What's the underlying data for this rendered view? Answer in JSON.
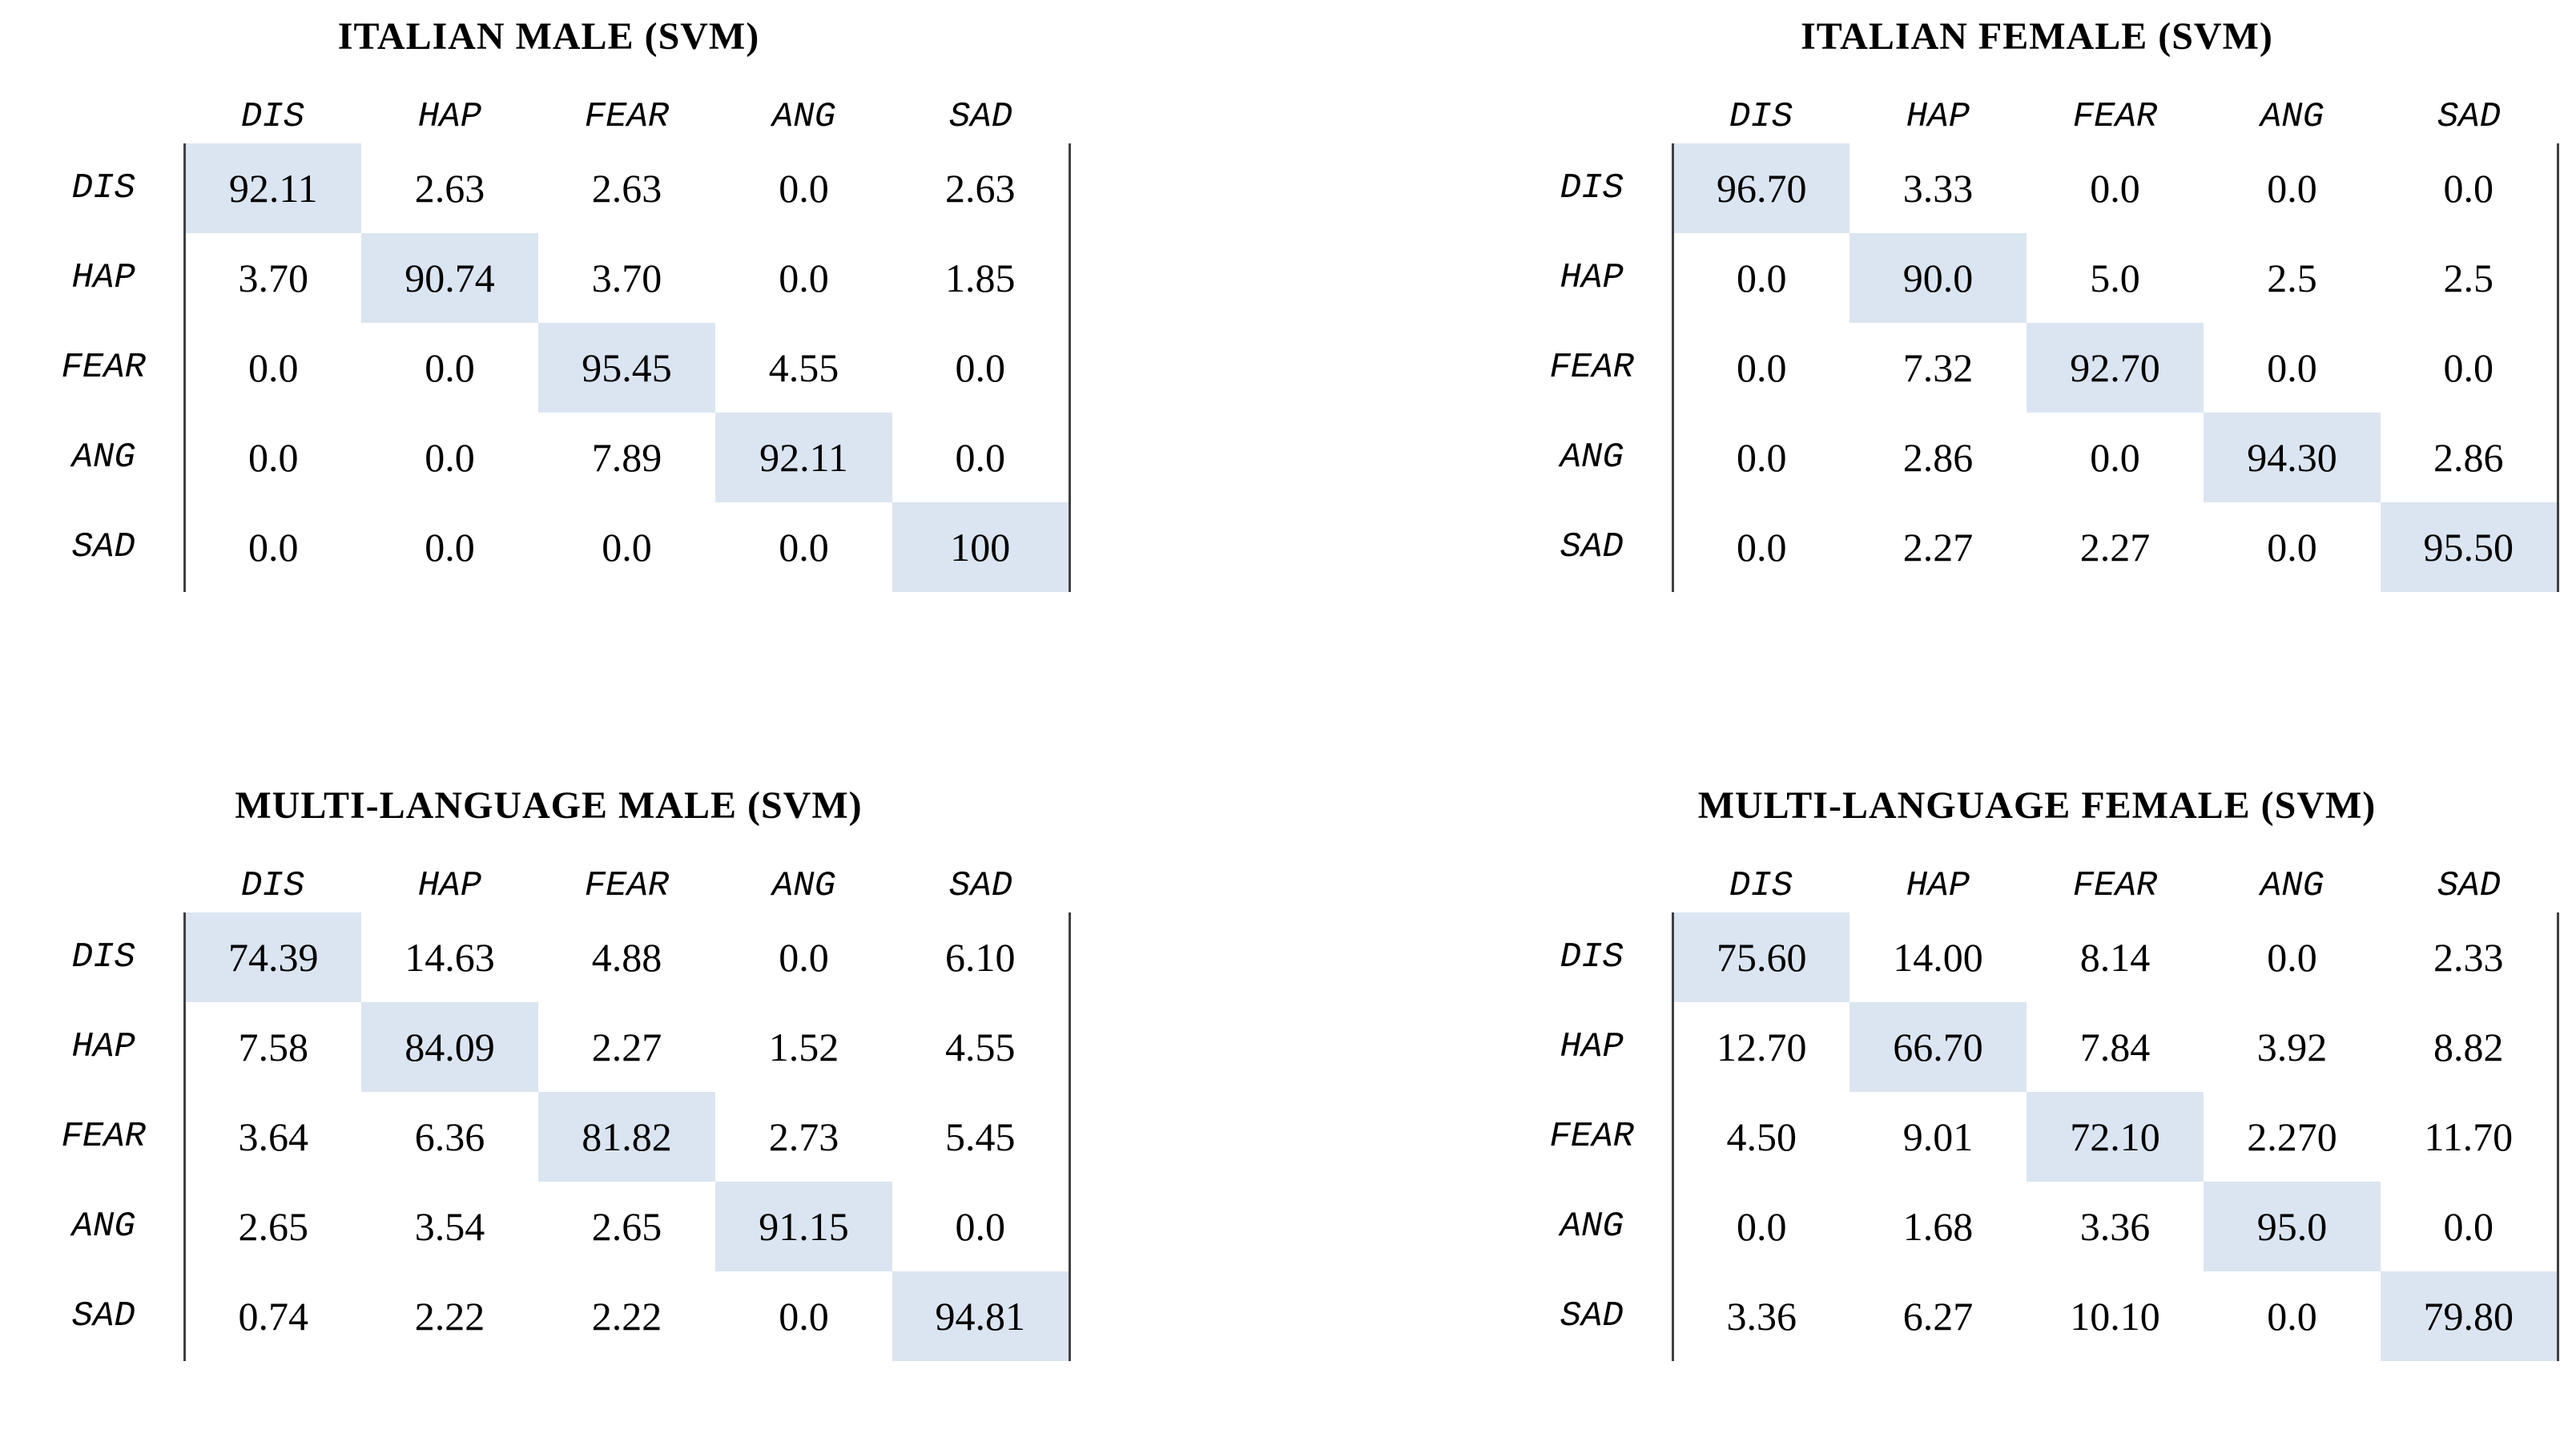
{
  "page": {
    "background": "#ffffff",
    "highlight_color": "#dbe5f1",
    "line_color": "#404040",
    "text_color": "#000000"
  },
  "emotion_labels": [
    "DIS",
    "HAP",
    "FEAR",
    "ANG",
    "SAD"
  ],
  "matrices": [
    {
      "title": "ITALIAN MALE (SVM)",
      "columns": [
        "DIS",
        "HAP",
        "FEAR",
        "ANG",
        "SAD"
      ],
      "rows": [
        {
          "label": "DIS",
          "values": [
            "92.11",
            "2.63",
            "2.63",
            "0.0",
            "2.63"
          ]
        },
        {
          "label": "HAP",
          "values": [
            "3.70",
            "90.74",
            "3.70",
            "0.0",
            "1.85"
          ]
        },
        {
          "label": "FEAR",
          "values": [
            "0.0",
            "0.0",
            "95.45",
            "4.55",
            "0.0"
          ]
        },
        {
          "label": "ANG",
          "values": [
            "0.0",
            "0.0",
            "7.89",
            "92.11",
            "0.0"
          ]
        },
        {
          "label": "SAD",
          "values": [
            "0.0",
            "0.0",
            "0.0",
            "0.0",
            "100"
          ]
        }
      ]
    },
    {
      "title": "ITALIAN FEMALE (SVM)",
      "columns": [
        "DIS",
        "HAP",
        "FEAR",
        "ANG",
        "SAD"
      ],
      "rows": [
        {
          "label": "DIS",
          "values": [
            "96.70",
            "3.33",
            "0.0",
            "0.0",
            "0.0"
          ]
        },
        {
          "label": "HAP",
          "values": [
            "0.0",
            "90.0",
            "5.0",
            "2.5",
            "2.5"
          ]
        },
        {
          "label": "FEAR",
          "values": [
            "0.0",
            "7.32",
            "92.70",
            "0.0",
            "0.0"
          ]
        },
        {
          "label": "ANG",
          "values": [
            "0.0",
            "2.86",
            "0.0",
            "94.30",
            "2.86"
          ]
        },
        {
          "label": "SAD",
          "values": [
            "0.0",
            "2.27",
            "2.27",
            "0.0",
            "95.50"
          ]
        }
      ]
    },
    {
      "title": "MULTI-LANGUAGE MALE (SVM)",
      "columns": [
        "DIS",
        "HAP",
        "FEAR",
        "ANG",
        "SAD"
      ],
      "rows": [
        {
          "label": "DIS",
          "values": [
            "74.39",
            "14.63",
            "4.88",
            "0.0",
            "6.10"
          ]
        },
        {
          "label": "HAP",
          "values": [
            "7.58",
            "84.09",
            "2.27",
            "1.52",
            "4.55"
          ]
        },
        {
          "label": "FEAR",
          "values": [
            "3.64",
            "6.36",
            "81.82",
            "2.73",
            "5.45"
          ]
        },
        {
          "label": "ANG",
          "values": [
            "2.65",
            "3.54",
            "2.65",
            "91.15",
            "0.0"
          ]
        },
        {
          "label": "SAD",
          "values": [
            "0.74",
            "2.22",
            "2.22",
            "0.0",
            "94.81"
          ]
        }
      ]
    },
    {
      "title": "MULTI-LANGUAGE FEMALE (SVM)",
      "columns": [
        "DIS",
        "HAP",
        "FEAR",
        "ANG",
        "SAD"
      ],
      "rows": [
        {
          "label": "DIS",
          "values": [
            "75.60",
            "14.00",
            "8.14",
            "0.0",
            "2.33"
          ]
        },
        {
          "label": "HAP",
          "values": [
            "12.70",
            "66.70",
            "7.84",
            "3.92",
            "8.82"
          ]
        },
        {
          "label": "FEAR",
          "values": [
            "4.50",
            "9.01",
            "72.10",
            "2.270",
            "11.70"
          ]
        },
        {
          "label": "ANG",
          "values": [
            "0.0",
            "1.68",
            "3.36",
            "95.0",
            "0.0"
          ]
        },
        {
          "label": "SAD",
          "values": [
            "3.36",
            "6.27",
            "10.10",
            "0.0",
            "79.80"
          ]
        }
      ]
    }
  ],
  "chart_data": [
    {
      "type": "heatmap",
      "title": "ITALIAN MALE (SVM)",
      "x_labels": [
        "DIS",
        "HAP",
        "FEAR",
        "ANG",
        "SAD"
      ],
      "y_labels": [
        "DIS",
        "HAP",
        "FEAR",
        "ANG",
        "SAD"
      ],
      "values": [
        [
          92.11,
          2.63,
          2.63,
          0.0,
          2.63
        ],
        [
          3.7,
          90.74,
          3.7,
          0.0,
          1.85
        ],
        [
          0.0,
          0.0,
          95.45,
          4.55,
          0.0
        ],
        [
          0.0,
          0.0,
          7.89,
          92.11,
          0.0
        ],
        [
          0.0,
          0.0,
          0.0,
          0.0,
          100
        ]
      ],
      "unit": "percent",
      "highlight": "diagonal",
      "legend_position": "none",
      "grid": false
    },
    {
      "type": "heatmap",
      "title": "ITALIAN FEMALE (SVM)",
      "x_labels": [
        "DIS",
        "HAP",
        "FEAR",
        "ANG",
        "SAD"
      ],
      "y_labels": [
        "DIS",
        "HAP",
        "FEAR",
        "ANG",
        "SAD"
      ],
      "values": [
        [
          96.7,
          3.33,
          0.0,
          0.0,
          0.0
        ],
        [
          0.0,
          90.0,
          5.0,
          2.5,
          2.5
        ],
        [
          0.0,
          7.32,
          92.7,
          0.0,
          0.0
        ],
        [
          0.0,
          2.86,
          0.0,
          94.3,
          2.86
        ],
        [
          0.0,
          2.27,
          2.27,
          0.0,
          95.5
        ]
      ],
      "unit": "percent",
      "highlight": "diagonal",
      "legend_position": "none",
      "grid": false
    },
    {
      "type": "heatmap",
      "title": "MULTI-LANGUAGE MALE (SVM)",
      "x_labels": [
        "DIS",
        "HAP",
        "FEAR",
        "ANG",
        "SAD"
      ],
      "y_labels": [
        "DIS",
        "HAP",
        "FEAR",
        "ANG",
        "SAD"
      ],
      "values": [
        [
          74.39,
          14.63,
          4.88,
          0.0,
          6.1
        ],
        [
          7.58,
          84.09,
          2.27,
          1.52,
          4.55
        ],
        [
          3.64,
          6.36,
          81.82,
          2.73,
          5.45
        ],
        [
          2.65,
          3.54,
          2.65,
          91.15,
          0.0
        ],
        [
          0.74,
          2.22,
          2.22,
          0.0,
          94.81
        ]
      ],
      "unit": "percent",
      "highlight": "diagonal",
      "legend_position": "none",
      "grid": false
    },
    {
      "type": "heatmap",
      "title": "MULTI-LANGUAGE FEMALE (SVM)",
      "x_labels": [
        "DIS",
        "HAP",
        "FEAR",
        "ANG",
        "SAD"
      ],
      "y_labels": [
        "DIS",
        "HAP",
        "FEAR",
        "ANG",
        "SAD"
      ],
      "values": [
        [
          75.6,
          14.0,
          8.14,
          0.0,
          2.33
        ],
        [
          12.7,
          66.7,
          7.84,
          3.92,
          8.82
        ],
        [
          4.5,
          9.01,
          72.1,
          2.27,
          11.7
        ],
        [
          0.0,
          1.68,
          3.36,
          95.0,
          0.0
        ],
        [
          3.36,
          6.27,
          10.1,
          0.0,
          79.8
        ]
      ],
      "unit": "percent",
      "highlight": "diagonal",
      "legend_position": "none",
      "grid": false
    }
  ]
}
